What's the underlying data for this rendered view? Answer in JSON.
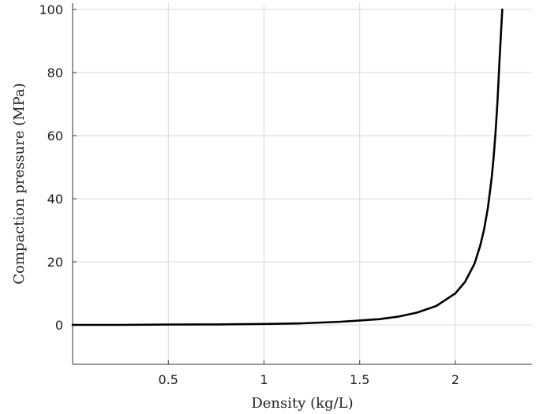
{
  "chart_data": {
    "type": "line",
    "title": "",
    "xlabel": "Density (kg/L)",
    "ylabel": "Compaction pressure (MPa)",
    "xlim": [
      0,
      2.4
    ],
    "ylim": [
      -12.5,
      102
    ],
    "xticks": [
      0.5,
      1,
      1.5,
      2
    ],
    "xtick_labels": [
      "0.5",
      "1",
      "1.5",
      "2"
    ],
    "yticks": [
      0,
      20,
      40,
      60,
      80,
      100
    ],
    "ytick_labels": [
      "0",
      "20",
      "40",
      "60",
      "80",
      "100"
    ],
    "grid": true,
    "legend": false,
    "series": [
      {
        "color": "#000000",
        "x": [
          0.0,
          0.25,
          0.5,
          0.75,
          1.0,
          1.2,
          1.4,
          1.5,
          1.55,
          1.6,
          1.7,
          1.8,
          1.9,
          2.0,
          2.05,
          2.1,
          2.13,
          2.15,
          2.17,
          2.19,
          2.2,
          2.21,
          2.22,
          2.23,
          2.24,
          2.245
        ],
        "values": [
          0.0,
          0.0,
          0.1,
          0.15,
          0.3,
          0.5,
          1.0,
          1.4,
          1.6,
          1.8,
          2.6,
          3.9,
          6.0,
          10.0,
          13.6,
          19.4,
          25.2,
          30.3,
          37.2,
          46.8,
          53.3,
          61.2,
          70.9,
          83.3,
          94.5,
          100.0
        ]
      }
    ]
  }
}
